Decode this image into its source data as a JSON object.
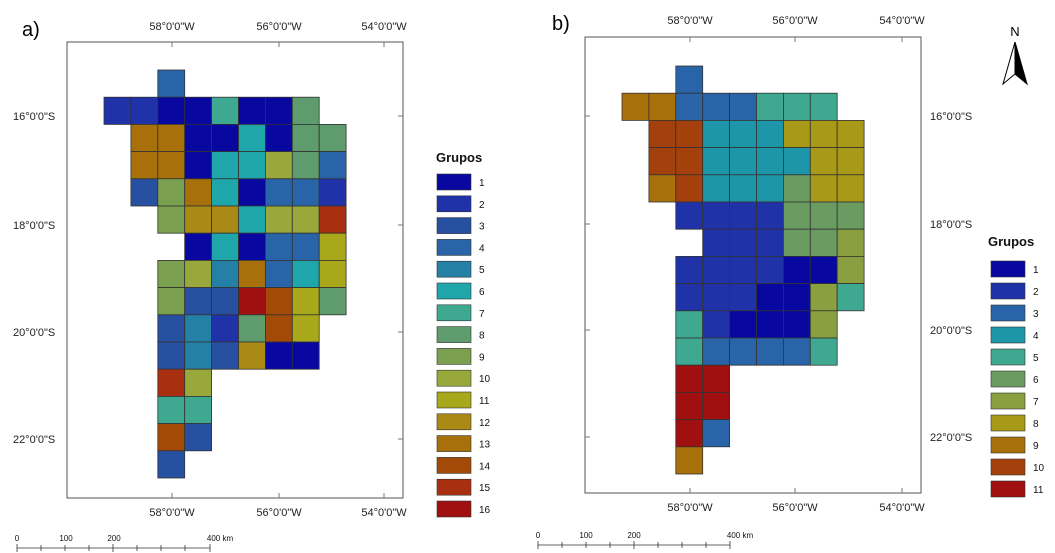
{
  "panels": [
    {
      "letter": "a)",
      "lon_labels": [
        "58°0'0\"W",
        "56°0'0\"W",
        "54°0'0\"W"
      ],
      "lat_labels": [
        "16°0'0\"S",
        "18°0'0\"S",
        "20°0'0\"S",
        "22°0'0\"S"
      ],
      "legend_title": "Grupos",
      "legend_items": [
        "1",
        "2",
        "3",
        "4",
        "5",
        "6",
        "7",
        "8",
        "9",
        "10",
        "11",
        "12",
        "13",
        "14",
        "15",
        "16"
      ],
      "legend_colors": [
        "#0808a0",
        "#1f32a8",
        "#2850a0",
        "#2a64a8",
        "#2580a6",
        "#1ea6aa",
        "#3ea890",
        "#5e9c6e",
        "#7aa050",
        "#98a83a",
        "#a8a81a",
        "#aa8a14",
        "#a8700a",
        "#a44a08",
        "#a83010",
        "#a01010"
      ],
      "grid": [
        [
          0,
          0,
          4,
          0,
          0,
          0,
          0,
          0,
          0,
          0,
          0,
          0,
          0,
          0,
          0,
          0
        ],
        [
          2,
          2,
          1,
          1,
          7,
          1,
          1,
          8,
          0,
          0,
          0,
          0,
          0,
          0,
          0,
          0
        ],
        [
          0,
          13,
          13,
          1,
          1,
          6,
          1,
          8,
          8,
          0,
          0,
          0,
          0,
          0,
          0,
          0
        ],
        [
          0,
          13,
          13,
          1,
          6,
          6,
          10,
          8,
          4,
          0,
          0,
          0,
          0,
          0,
          0,
          0
        ],
        [
          0,
          3,
          9,
          13,
          6,
          1,
          4,
          4,
          2,
          0,
          0,
          0,
          0,
          0,
          0,
          0
        ],
        [
          0,
          0,
          9,
          12,
          12,
          6,
          10,
          10,
          15,
          0,
          0,
          0,
          0,
          0,
          0,
          0
        ],
        [
          0,
          0,
          0,
          1,
          6,
          1,
          4,
          4,
          11,
          0,
          0,
          0,
          0,
          0,
          0,
          0
        ],
        [
          0,
          0,
          9,
          10,
          5,
          13,
          4,
          6,
          11,
          0,
          0,
          0,
          0,
          0,
          0,
          0
        ],
        [
          0,
          0,
          9,
          3,
          3,
          16,
          14,
          11,
          8,
          0,
          0,
          0,
          0,
          0,
          0,
          0
        ],
        [
          0,
          0,
          3,
          5,
          2,
          8,
          14,
          11,
          0,
          0,
          0,
          0,
          0,
          0,
          0,
          0
        ],
        [
          0,
          0,
          3,
          5,
          3,
          12,
          1,
          1,
          0,
          0,
          0,
          0,
          0,
          0,
          0,
          0
        ],
        [
          0,
          0,
          15,
          10,
          0,
          0,
          0,
          0,
          0,
          0,
          0,
          0,
          0,
          0,
          0,
          0
        ],
        [
          0,
          0,
          7,
          7,
          0,
          0,
          0,
          0,
          0,
          0,
          0,
          0,
          0,
          0,
          0,
          0
        ],
        [
          0,
          0,
          14,
          3,
          0,
          0,
          0,
          0,
          0,
          0,
          0,
          0,
          0,
          0,
          0,
          0
        ],
        [
          0,
          0,
          3,
          0,
          0,
          0,
          0,
          0,
          0,
          0,
          0,
          0,
          0,
          0,
          0,
          0
        ]
      ],
      "scale_labels": [
        "0",
        "100",
        "200",
        "400 km"
      ]
    },
    {
      "letter": "b)",
      "lon_labels": [
        "58°0'0\"W",
        "56°0'0\"W",
        "54°0'0\"W"
      ],
      "lat_labels": [
        "16°0'0\"S",
        "18°0'0\"S",
        "20°0'0\"S",
        "22°0'0\"S"
      ],
      "legend_title": "Grupos",
      "legend_items": [
        "1",
        "2",
        "3",
        "4",
        "5",
        "6",
        "7",
        "8",
        "9",
        "10",
        "11"
      ],
      "legend_colors": [
        "#0808a0",
        "#1f32a8",
        "#2a64a8",
        "#1e96aa",
        "#3ea890",
        "#6a9c62",
        "#8aa040",
        "#a89a18",
        "#a8700a",
        "#a4400c",
        "#a01010"
      ],
      "grid": [
        [
          0,
          0,
          3,
          0,
          0,
          0,
          0,
          0,
          0,
          0,
          0,
          0,
          0,
          0,
          0,
          0
        ],
        [
          9,
          9,
          3,
          3,
          3,
          5,
          5,
          5,
          0,
          0,
          0,
          0,
          0,
          0,
          0,
          0
        ],
        [
          0,
          10,
          10,
          4,
          4,
          4,
          8,
          8,
          8,
          0,
          0,
          0,
          0,
          0,
          0,
          0
        ],
        [
          0,
          10,
          10,
          4,
          4,
          4,
          4,
          8,
          8,
          0,
          0,
          0,
          0,
          0,
          0,
          0
        ],
        [
          0,
          9,
          10,
          4,
          4,
          4,
          6,
          8,
          8,
          0,
          0,
          0,
          0,
          0,
          0,
          0
        ],
        [
          0,
          0,
          2,
          2,
          2,
          2,
          6,
          6,
          6,
          0,
          0,
          0,
          0,
          0,
          0,
          0
        ],
        [
          0,
          0,
          0,
          2,
          2,
          2,
          6,
          6,
          7,
          0,
          0,
          0,
          0,
          0,
          0,
          0
        ],
        [
          0,
          0,
          2,
          2,
          2,
          2,
          1,
          1,
          7,
          0,
          0,
          0,
          0,
          0,
          0,
          0
        ],
        [
          0,
          0,
          2,
          2,
          2,
          1,
          1,
          7,
          5,
          0,
          0,
          0,
          0,
          0,
          0,
          0
        ],
        [
          0,
          0,
          5,
          2,
          1,
          1,
          1,
          7,
          0,
          0,
          0,
          0,
          0,
          0,
          0,
          0
        ],
        [
          0,
          0,
          5,
          3,
          3,
          3,
          3,
          5,
          0,
          0,
          0,
          0,
          0,
          0,
          0,
          0
        ],
        [
          0,
          0,
          11,
          11,
          0,
          0,
          0,
          0,
          0,
          0,
          0,
          0,
          0,
          0,
          0,
          0
        ],
        [
          0,
          0,
          11,
          11,
          0,
          0,
          0,
          0,
          0,
          0,
          0,
          0,
          0,
          0,
          0,
          0
        ],
        [
          0,
          0,
          11,
          3,
          0,
          0,
          0,
          0,
          0,
          0,
          0,
          0,
          0,
          0,
          0,
          0
        ],
        [
          0,
          0,
          9,
          0,
          0,
          0,
          0,
          0,
          0,
          0,
          0,
          0,
          0,
          0,
          0,
          0
        ]
      ],
      "scale_labels": [
        "0",
        "100",
        "200",
        "400 km"
      ]
    }
  ],
  "north_arrow": {
    "label": "N"
  }
}
